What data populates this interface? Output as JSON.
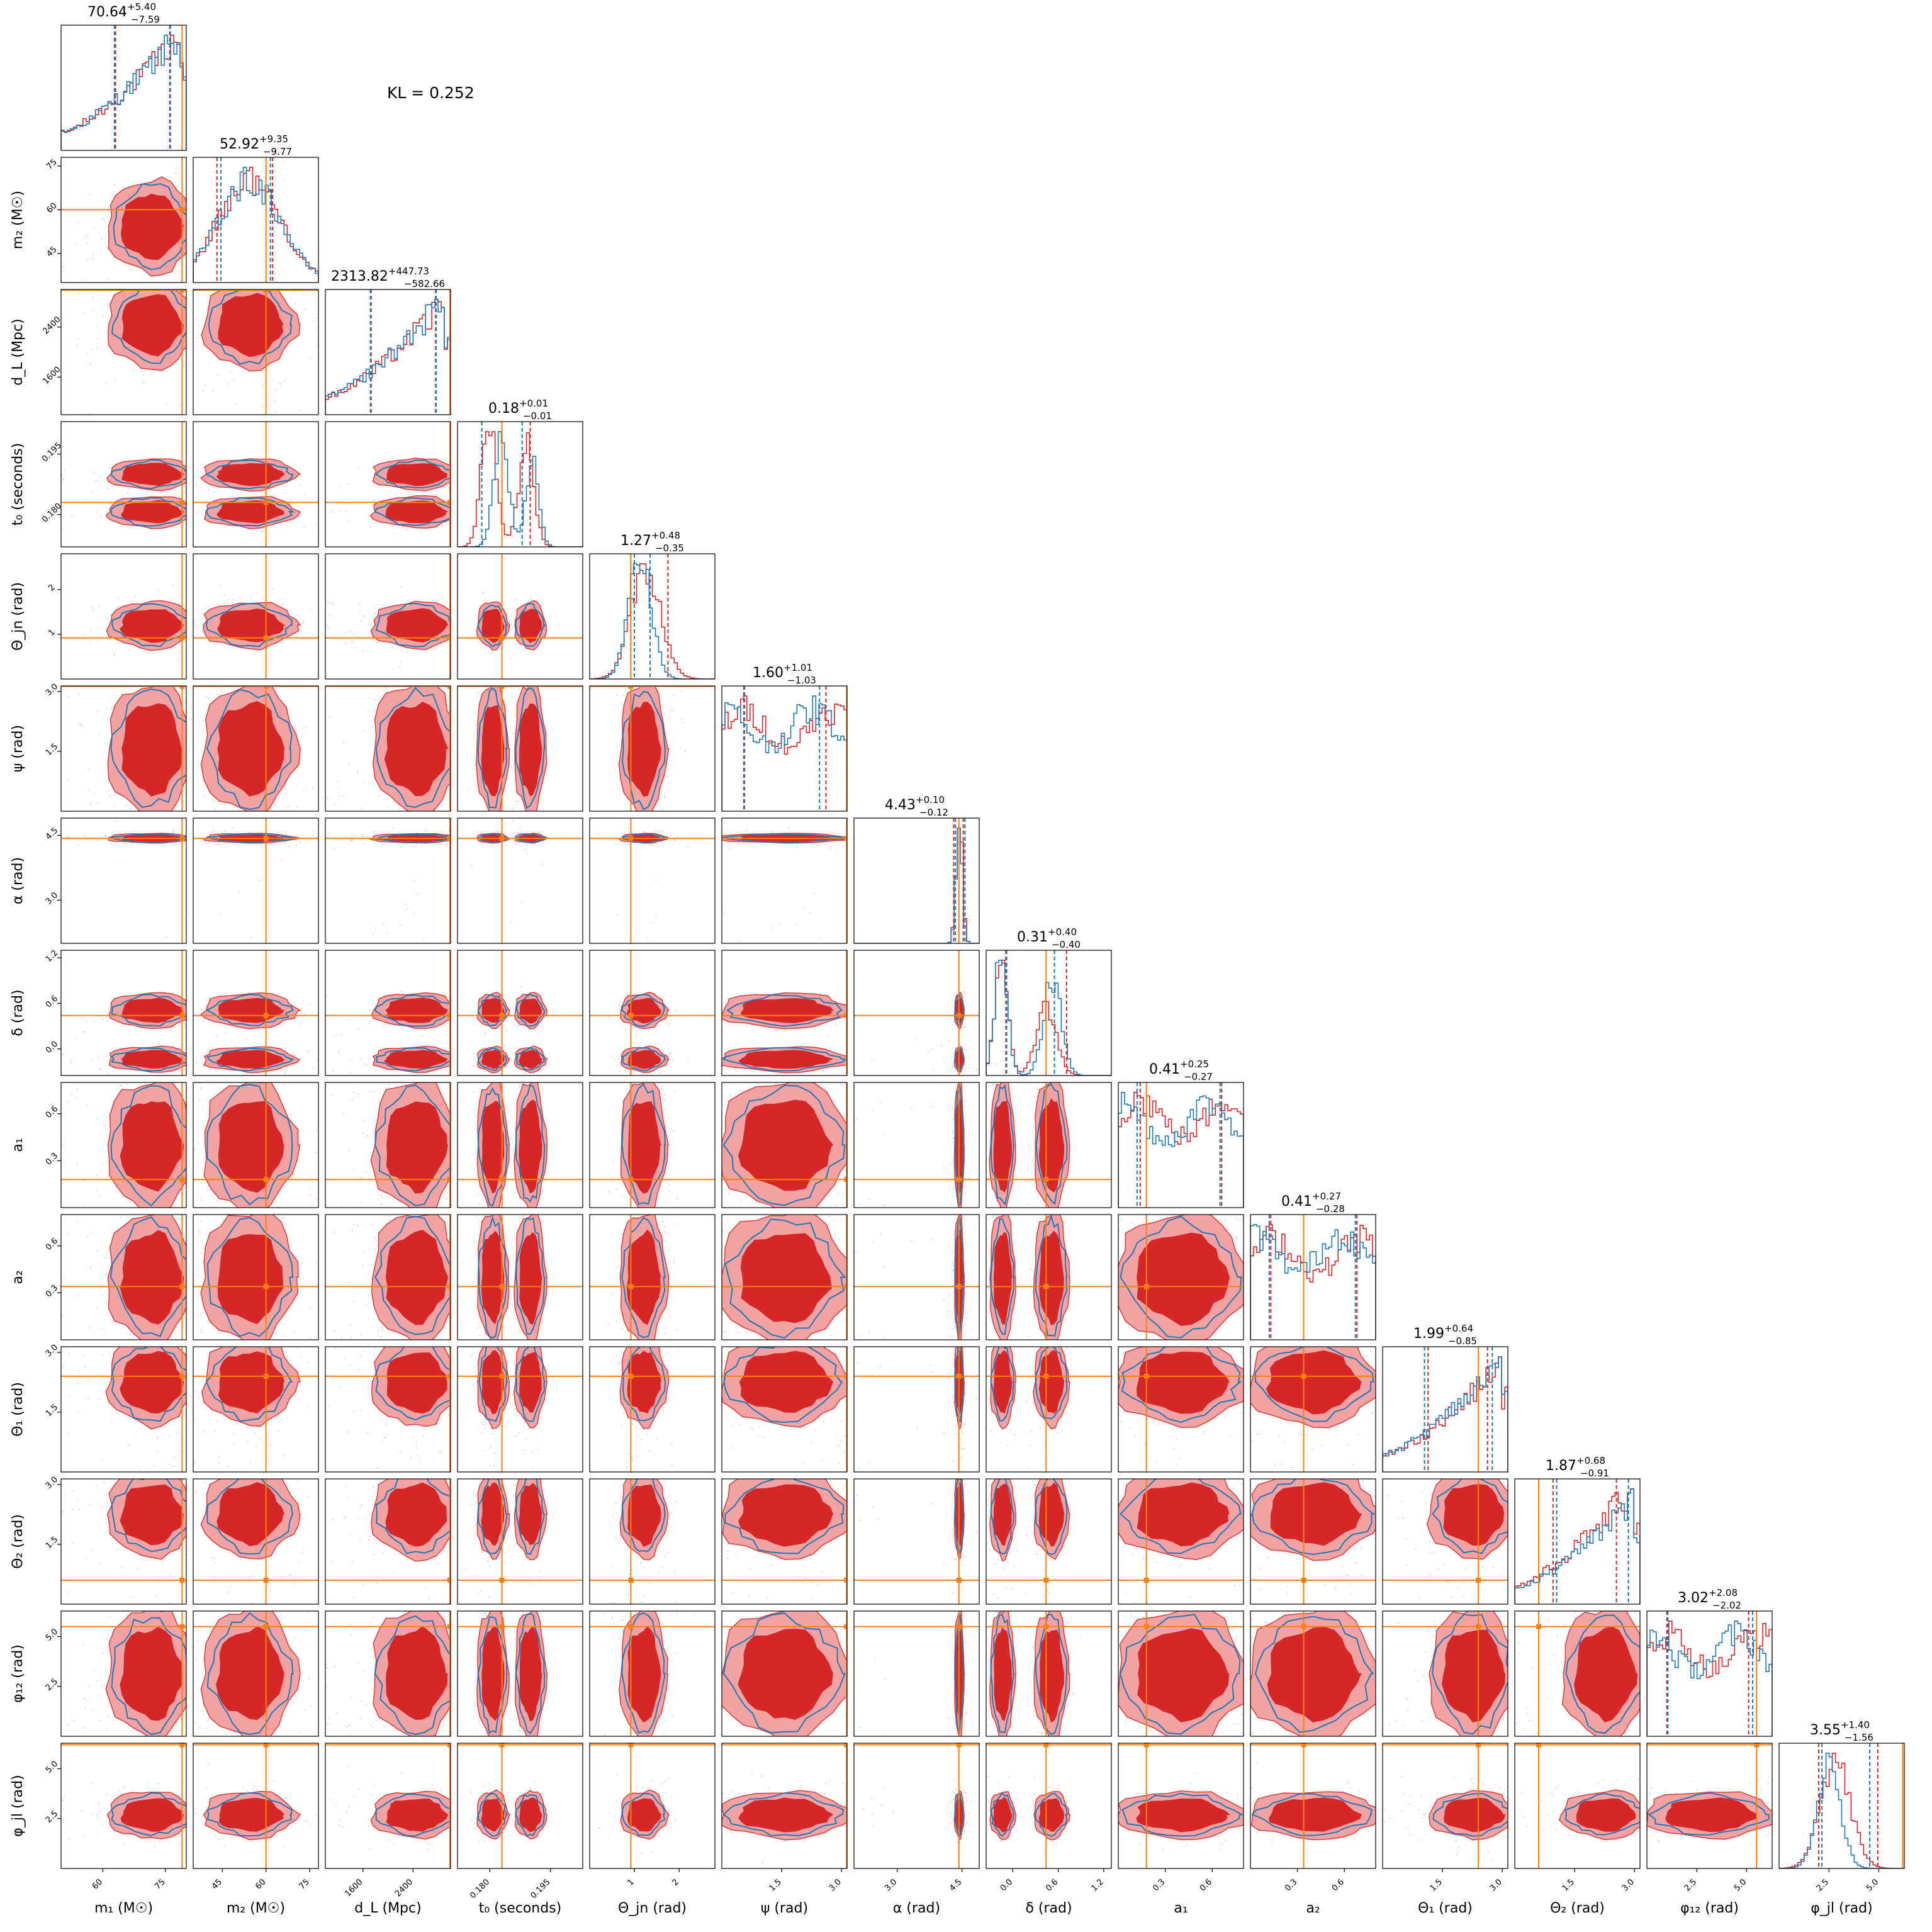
{
  "chart_data": {
    "type": "corner",
    "annotation": "KL = 0.252",
    "series": [
      {
        "color": "#d62728"
      },
      {
        "color": "#1f77b4"
      }
    ],
    "truth_color": "#ff7f0e",
    "params": [
      {
        "label": "m₁ (M☉)",
        "ylabel": "",
        "median": "70.64",
        "plus": "+5.40",
        "minus": "−7.59",
        "range": [
          50,
          80
        ],
        "truth": 79,
        "ticks": [
          60,
          75
        ],
        "q": [
          63.05,
          76.04
        ],
        "q2": [
          62.8,
          76.2
        ],
        "shape": "rise",
        "tick_fmt": 0
      },
      {
        "label": "m₂ (M☉)",
        "ylabel": "m₂ (M☉)",
        "median": "52.92",
        "plus": "+9.35",
        "minus": "−9.77",
        "range": [
          35,
          78
        ],
        "truth": 60,
        "ticks": [
          45,
          60,
          75
        ],
        "q": [
          43.15,
          62.27
        ],
        "q2": [
          44.5,
          61.5
        ],
        "shape": "plateau",
        "tick_fmt": 0
      },
      {
        "label": "d_L (Mpc)",
        "ylabel": "d_L (Mpc)",
        "median": "2313.82",
        "plus": "+447.73",
        "minus": "−582.66",
        "range": [
          1000,
          3000
        ],
        "truth": 2990,
        "ticks": [
          1600,
          2400
        ],
        "q": [
          1731.16,
          2761.55
        ],
        "q2": [
          1720,
          2770
        ],
        "shape": "rise",
        "tick_fmt": 0
      },
      {
        "label": "t₀ (seconds)",
        "ylabel": "t₀ (seconds)",
        "median": "0.18",
        "plus": "+0.01",
        "minus": "−0.01",
        "range": [
          0.172,
          0.203
        ],
        "truth": 0.183,
        "ticks": [
          0.18,
          0.195
        ],
        "q": [
          0.178,
          0.19
        ],
        "q2": [
          0.178,
          0.188
        ],
        "shape": "bimodal",
        "tick_fmt": 3
      },
      {
        "label": "Θ_jn (rad)",
        "ylabel": "Θ_jn (rad)",
        "median": "1.27",
        "plus": "+0.48",
        "minus": "−0.35",
        "range": [
          0,
          2.8
        ],
        "truth": 0.92,
        "ticks": [
          1,
          2
        ],
        "q": [
          0.92,
          1.75
        ],
        "q2": [
          1.0,
          1.35
        ],
        "shape": "peak",
        "tick_fmt": 0
      },
      {
        "label": "ψ (rad)",
        "ylabel": "ψ (rad)",
        "median": "1.60",
        "plus": "+1.01",
        "minus": "−1.03",
        "range": [
          0,
          3.14
        ],
        "truth": 3.13,
        "ticks": [
          1.5,
          3.0
        ],
        "q": [
          0.57,
          2.61
        ],
        "q2": [
          0.55,
          2.45
        ],
        "shape": "flat",
        "tick_fmt": 1
      },
      {
        "label": "α (rad)",
        "ylabel": "α (rad)",
        "median": "4.43",
        "plus": "+0.10",
        "minus": "−0.12",
        "range": [
          2.0,
          4.9
        ],
        "truth": 4.43,
        "ticks": [
          3.0,
          4.5
        ],
        "q": [
          4.31,
          4.53
        ],
        "q2": [
          4.35,
          4.57
        ],
        "shape": "spike",
        "tick_fmt": 1
      },
      {
        "label": "δ (rad)",
        "ylabel": "δ (rad)",
        "median": "0.31",
        "plus": "+0.40",
        "minus": "−0.40",
        "range": [
          -0.35,
          1.3
        ],
        "truth": 0.44,
        "ticks": [
          0.0,
          0.6,
          1.2
        ],
        "q": [
          -0.09,
          0.71
        ],
        "q2": [
          -0.08,
          0.55
        ],
        "shape": "bimodal2",
        "tick_fmt": 1
      },
      {
        "label": "a₁",
        "ylabel": "a₁",
        "median": "0.41",
        "plus": "+0.25",
        "minus": "−0.27",
        "range": [
          0,
          0.8
        ],
        "truth": 0.18,
        "ticks": [
          0.3,
          0.6
        ],
        "q": [
          0.14,
          0.66
        ],
        "q2": [
          0.12,
          0.65
        ],
        "shape": "flat",
        "tick_fmt": 1
      },
      {
        "label": "a₂",
        "ylabel": "a₂",
        "median": "0.41",
        "plus": "+0.27",
        "minus": "−0.28",
        "range": [
          0,
          0.8
        ],
        "truth": 0.34,
        "ticks": [
          0.3,
          0.6
        ],
        "q": [
          0.13,
          0.68
        ],
        "q2": [
          0.12,
          0.67
        ],
        "shape": "flat",
        "tick_fmt": 1
      },
      {
        "label": "Θ₁ (rad)",
        "ylabel": "Θ₁ (rad)",
        "median": "1.99",
        "plus": "+0.64",
        "minus": "−0.85",
        "range": [
          0,
          3.14
        ],
        "truth": 2.4,
        "ticks": [
          1.5,
          3.0
        ],
        "q": [
          1.14,
          2.63
        ],
        "q2": [
          1.05,
          2.75
        ],
        "shape": "rise",
        "tick_fmt": 1
      },
      {
        "label": "Θ₂ (rad)",
        "ylabel": "Θ₂ (rad)",
        "median": "1.87",
        "plus": "+0.68",
        "minus": "−0.91",
        "range": [
          0,
          3.14
        ],
        "truth": 0.6,
        "ticks": [
          1.5,
          3.0
        ],
        "q": [
          0.96,
          2.55
        ],
        "q2": [
          1.05,
          2.85
        ],
        "shape": "rise",
        "tick_fmt": 1
      },
      {
        "label": "φ₁₂ (rad)",
        "ylabel": "φ₁₂ (rad)",
        "median": "3.02",
        "plus": "+2.08",
        "minus": "−2.02",
        "range": [
          0,
          6.28
        ],
        "truth": 5.5,
        "ticks": [
          2.5,
          5.0
        ],
        "q": [
          1.0,
          5.1
        ],
        "q2": [
          1.05,
          5.3
        ],
        "shape": "flat",
        "tick_fmt": 1
      },
      {
        "label": "φ_jl (rad)",
        "ylabel": "φ_jl (rad)",
        "median": "3.55",
        "plus": "+1.40",
        "minus": "−1.56",
        "range": [
          0,
          6.28
        ],
        "truth": 6.2,
        "ticks": [
          2.5,
          5.0
        ],
        "q": [
          1.99,
          4.95
        ],
        "q2": [
          2.15,
          4.55
        ],
        "shape": "peak",
        "tick_fmt": 1
      }
    ]
  }
}
